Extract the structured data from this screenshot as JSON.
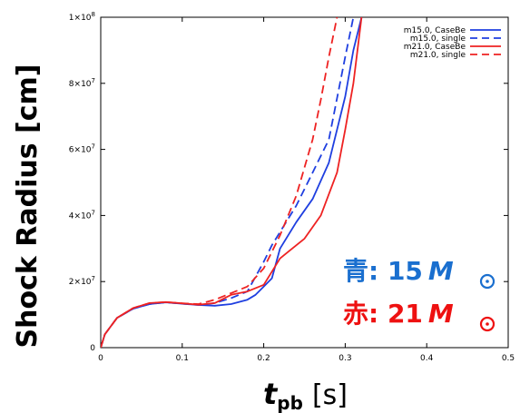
{
  "chart_data": {
    "type": "line",
    "xlabel": {
      "main": "t",
      "sub": "pb",
      "unit": "[s]"
    },
    "ylabel": "Shock Radius [cm]",
    "xlim": [
      0,
      0.5
    ],
    "ylim": [
      0,
      100000000
    ],
    "x_ticks": [
      "0",
      "0.1",
      "0.2",
      "0.3",
      "0.4",
      "0.5"
    ],
    "y_ticks": [
      {
        "mant": "0",
        "exp": ""
      },
      {
        "mant": "2×10",
        "exp": "7"
      },
      {
        "mant": "4×10",
        "exp": "7"
      },
      {
        "mant": "6×10",
        "exp": "7"
      },
      {
        "mant": "8×10",
        "exp": "7"
      },
      {
        "mant": "1×10",
        "exp": "8"
      }
    ],
    "legend_position": "top-right",
    "series": [
      {
        "name": "m15.0, CaseBe",
        "color": "#1f3fe0",
        "dashed": false,
        "x": [
          0,
          0.005,
          0.02,
          0.04,
          0.06,
          0.08,
          0.1,
          0.12,
          0.14,
          0.16,
          0.18,
          0.19,
          0.2,
          0.21,
          0.22,
          0.24,
          0.26,
          0.28,
          0.3,
          0.31,
          0.32
        ],
        "y": [
          0,
          4000000,
          9000000,
          11800000,
          13200000,
          13700000,
          13300000,
          12900000,
          12700000,
          13200000,
          14500000,
          16000000,
          18500000,
          21000000,
          30000000,
          38000000,
          45000000,
          56000000,
          76000000,
          90000000,
          100000000
        ]
      },
      {
        "name": "m15.0, single",
        "color": "#1f3fe0",
        "dashed": true,
        "x": [
          0,
          0.005,
          0.02,
          0.04,
          0.06,
          0.08,
          0.1,
          0.12,
          0.14,
          0.16,
          0.18,
          0.2,
          0.21,
          0.22,
          0.24,
          0.26,
          0.28,
          0.3,
          0.31
        ],
        "y": [
          0,
          4000000,
          9000000,
          11800000,
          13200000,
          13700000,
          13300000,
          12900000,
          13500000,
          15000000,
          17000000,
          26000000,
          31000000,
          35000000,
          43000000,
          53000000,
          63000000,
          88000000,
          100000000
        ]
      },
      {
        "name": "m21.0, CaseBe",
        "color": "#ee2222",
        "dashed": false,
        "x": [
          0,
          0.005,
          0.02,
          0.04,
          0.06,
          0.08,
          0.1,
          0.12,
          0.14,
          0.16,
          0.18,
          0.2,
          0.21,
          0.22,
          0.23,
          0.25,
          0.27,
          0.29,
          0.3,
          0.31,
          0.32
        ],
        "y": [
          0,
          4000000,
          9000000,
          12000000,
          13500000,
          13800000,
          13400000,
          13000000,
          13500000,
          16000000,
          17000000,
          19000000,
          23000000,
          27000000,
          29000000,
          33000000,
          40000000,
          53000000,
          66000000,
          80000000,
          100000000
        ]
      },
      {
        "name": "m21.0, single",
        "color": "#ee2222",
        "dashed": true,
        "x": [
          0,
          0.005,
          0.02,
          0.04,
          0.06,
          0.08,
          0.1,
          0.12,
          0.14,
          0.16,
          0.18,
          0.2,
          0.21,
          0.22,
          0.24,
          0.26,
          0.27,
          0.28,
          0.29
        ],
        "y": [
          0,
          4000000,
          9000000,
          12000000,
          13500000,
          13800000,
          13400000,
          13200000,
          14500000,
          16500000,
          18500000,
          24000000,
          29000000,
          34000000,
          46000000,
          63000000,
          75000000,
          88000000,
          100000000
        ]
      }
    ],
    "annotations": [
      {
        "prefix": "青: 15",
        "symbol": "M",
        "color": "#1a6fcf"
      },
      {
        "prefix": "赤: 21",
        "symbol": "M",
        "color": "#ee1111"
      }
    ]
  }
}
